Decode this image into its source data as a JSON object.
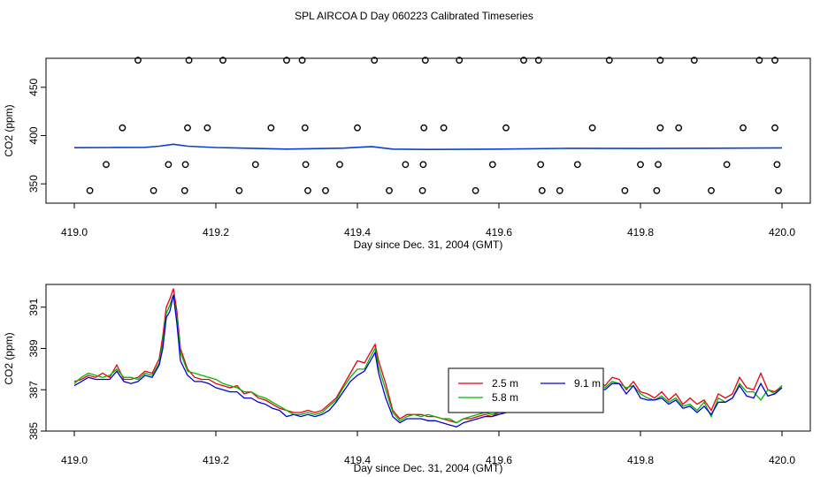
{
  "title": "SPL AIRCOA D  Day 060223  Calibrated Timeseries",
  "chart_data": [
    {
      "type": "scatter",
      "xlabel": "Day since Dec. 31, 2004 (GMT)",
      "ylabel": "CO2 (ppm)",
      "xlim": [
        419.0,
        420.0
      ],
      "ylim": [
        330,
        480
      ],
      "xticks": [
        "419.0",
        "419.2",
        "419.4",
        "419.6",
        "419.8",
        "420.0"
      ],
      "yticks": [
        "350",
        "400",
        "450"
      ],
      "grid": false,
      "points_x": [
        419.09,
        419.162,
        419.21,
        419.3,
        419.322,
        419.424,
        419.496,
        419.544,
        419.635,
        419.656,
        419.756,
        419.828,
        419.876,
        419.968,
        419.99,
        419.068,
        419.16,
        419.188,
        419.278,
        419.326,
        419.4,
        419.494,
        419.522,
        419.61,
        419.732,
        419.828,
        419.854,
        419.945,
        419.99,
        419.045,
        419.133,
        419.157,
        419.256,
        419.327,
        419.375,
        419.468,
        419.493,
        419.591,
        419.659,
        419.711,
        419.8,
        419.825,
        419.922,
        419.993,
        419.022,
        419.112,
        419.156,
        419.233,
        419.33,
        419.355,
        419.445,
        419.492,
        419.567,
        419.661,
        419.686,
        419.778,
        419.823,
        419.9,
        419.995
      ],
      "points_y": [
        478,
        478,
        478,
        478,
        478,
        478,
        478,
        478,
        478,
        478,
        478,
        478,
        478,
        478,
        478,
        408,
        408,
        408,
        408,
        408,
        408,
        408,
        408,
        408,
        408,
        408,
        408,
        408,
        408,
        370,
        370,
        370,
        370,
        370,
        370,
        370,
        370,
        370,
        370,
        370,
        370,
        370,
        370,
        370,
        343,
        343,
        343,
        343,
        343,
        343,
        343,
        343,
        343,
        343,
        343,
        343,
        343,
        343,
        343
      ],
      "line_x": [
        419.0,
        419.05,
        419.1,
        419.12,
        419.14,
        419.16,
        419.2,
        419.3,
        419.38,
        419.42,
        419.45,
        419.5,
        419.6,
        419.7,
        419.8,
        419.9,
        420.0
      ],
      "line_y": [
        387.4,
        387.6,
        387.8,
        389,
        391,
        389,
        387.6,
        386,
        387,
        388.6,
        386,
        385.6,
        386,
        386.8,
        386.6,
        386.9,
        387.3
      ]
    },
    {
      "type": "line",
      "xlabel": "Day since Dec. 31, 2004 (GMT)",
      "ylabel": "CO2 (ppm)",
      "xlim": [
        419.0,
        420.0
      ],
      "ylim": [
        385,
        392.1
      ],
      "xticks": [
        "419.0",
        "419.2",
        "419.4",
        "419.6",
        "419.8",
        "420.0"
      ],
      "yticks": [
        "385",
        "387",
        "389",
        "391"
      ],
      "grid": false,
      "legend_position": "center-right",
      "x": [
        419.0,
        419.01,
        419.02,
        419.03,
        419.04,
        419.05,
        419.06,
        419.07,
        419.08,
        419.09,
        419.1,
        419.11,
        419.12,
        419.125,
        419.13,
        419.135,
        419.14,
        419.145,
        419.15,
        419.16,
        419.17,
        419.18,
        419.19,
        419.2,
        419.21,
        419.22,
        419.23,
        419.24,
        419.25,
        419.26,
        419.27,
        419.28,
        419.29,
        419.3,
        419.31,
        419.32,
        419.33,
        419.34,
        419.35,
        419.36,
        419.37,
        419.38,
        419.39,
        419.4,
        419.41,
        419.42,
        419.425,
        419.43,
        419.44,
        419.45,
        419.46,
        419.47,
        419.48,
        419.49,
        419.5,
        419.51,
        419.52,
        419.53,
        419.54,
        419.55,
        419.56,
        419.57,
        419.58,
        419.59,
        419.6,
        419.61,
        419.62,
        419.63,
        419.64,
        419.65,
        419.66,
        419.67,
        419.68,
        419.69,
        419.7,
        419.71,
        419.72,
        419.73,
        419.74,
        419.75,
        419.76,
        419.77,
        419.78,
        419.79,
        419.8,
        419.81,
        419.82,
        419.83,
        419.84,
        419.85,
        419.86,
        419.87,
        419.88,
        419.89,
        419.9,
        419.91,
        419.92,
        419.93,
        419.94,
        419.95,
        419.96,
        419.97,
        419.98,
        419.99,
        420.0
      ],
      "series": [
        {
          "name": "2.5 m",
          "color": "#e8000b",
          "values": [
            387.4,
            387.5,
            387.7,
            387.6,
            387.8,
            387.6,
            388.2,
            387.5,
            387.5,
            387.6,
            387.9,
            387.8,
            388.5,
            389.6,
            391.0,
            391.4,
            391.9,
            390.8,
            389.0,
            388.0,
            387.6,
            387.5,
            387.5,
            387.3,
            387.2,
            387.1,
            387.2,
            386.8,
            386.9,
            386.6,
            386.5,
            386.3,
            386.1,
            386.0,
            385.9,
            385.9,
            386.0,
            385.9,
            386.0,
            386.3,
            386.6,
            387.2,
            387.8,
            388.4,
            388.3,
            388.9,
            389.2,
            388.4,
            387.3,
            386.0,
            385.6,
            385.8,
            385.8,
            385.8,
            385.7,
            385.7,
            385.6,
            385.5,
            385.4,
            385.6,
            385.6,
            385.7,
            385.8,
            385.7,
            385.9,
            386.0,
            386.1,
            386.1,
            386.2,
            386.5,
            386.6,
            386.6,
            386.6,
            386.7,
            386.8,
            386.6,
            386.8,
            387.1,
            387.4,
            387.2,
            387.6,
            387.5,
            387.0,
            387.4,
            386.9,
            386.8,
            386.6,
            386.9,
            386.5,
            386.8,
            386.3,
            386.6,
            386.3,
            386.5,
            386.0,
            386.8,
            386.6,
            386.8,
            387.6,
            387.1,
            387.0,
            387.8,
            387.0,
            386.9,
            387.2
          ]
        },
        {
          "name": "5.8 m",
          "color": "#00b800",
          "values": [
            387.3,
            387.6,
            387.8,
            387.7,
            387.6,
            387.7,
            388.0,
            387.6,
            387.6,
            387.5,
            387.8,
            387.7,
            388.3,
            389.3,
            390.7,
            391.1,
            391.6,
            390.5,
            388.8,
            387.9,
            387.8,
            387.7,
            387.6,
            387.5,
            387.3,
            387.2,
            387.1,
            386.9,
            386.9,
            386.7,
            386.6,
            386.4,
            386.2,
            386.0,
            385.8,
            385.8,
            385.9,
            385.8,
            385.9,
            386.2,
            386.5,
            387.1,
            387.6,
            388.0,
            388.0,
            388.7,
            389.0,
            388.1,
            387.0,
            385.9,
            385.5,
            385.7,
            385.8,
            385.7,
            385.8,
            385.7,
            385.6,
            385.6,
            385.4,
            385.6,
            385.7,
            385.8,
            385.9,
            385.8,
            385.9,
            385.9,
            386.0,
            386.1,
            386.3,
            386.4,
            386.5,
            386.5,
            386.6,
            386.5,
            386.8,
            386.7,
            386.9,
            387.2,
            387.3,
            387.1,
            387.4,
            387.3,
            387.1,
            387.2,
            386.8,
            386.6,
            386.5,
            386.7,
            386.4,
            386.6,
            386.2,
            386.3,
            386.0,
            386.4,
            385.7,
            386.6,
            386.4,
            386.6,
            387.3,
            386.9,
            386.9,
            386.5,
            387.0,
            386.8,
            387.2
          ]
        },
        {
          "name": "9.1 m",
          "color": "#0000dd",
          "values": [
            387.2,
            387.4,
            387.6,
            387.5,
            387.5,
            387.5,
            387.9,
            387.4,
            387.3,
            387.4,
            387.7,
            387.6,
            388.2,
            389.0,
            390.5,
            390.8,
            391.6,
            390.2,
            388.4,
            387.7,
            387.4,
            387.4,
            387.3,
            387.1,
            387.0,
            386.9,
            386.9,
            386.6,
            386.6,
            386.4,
            386.3,
            386.1,
            386.0,
            385.7,
            385.8,
            385.7,
            385.8,
            385.7,
            385.8,
            386.0,
            386.4,
            386.9,
            387.4,
            387.7,
            387.9,
            388.5,
            388.8,
            387.8,
            386.6,
            385.7,
            385.4,
            385.6,
            385.6,
            385.6,
            385.5,
            385.5,
            385.4,
            385.3,
            385.2,
            385.4,
            385.5,
            385.6,
            385.7,
            385.7,
            385.8,
            385.9,
            386.0,
            386.0,
            386.1,
            386.4,
            386.5,
            386.5,
            386.5,
            386.5,
            386.6,
            386.6,
            386.7,
            387.0,
            387.1,
            387.0,
            387.3,
            387.3,
            386.8,
            387.2,
            386.6,
            386.5,
            386.5,
            386.6,
            386.3,
            386.5,
            386.1,
            386.2,
            385.9,
            386.2,
            385.8,
            386.4,
            386.4,
            386.6,
            387.2,
            386.7,
            386.6,
            387.3,
            386.7,
            386.8,
            387.1
          ]
        }
      ]
    }
  ]
}
